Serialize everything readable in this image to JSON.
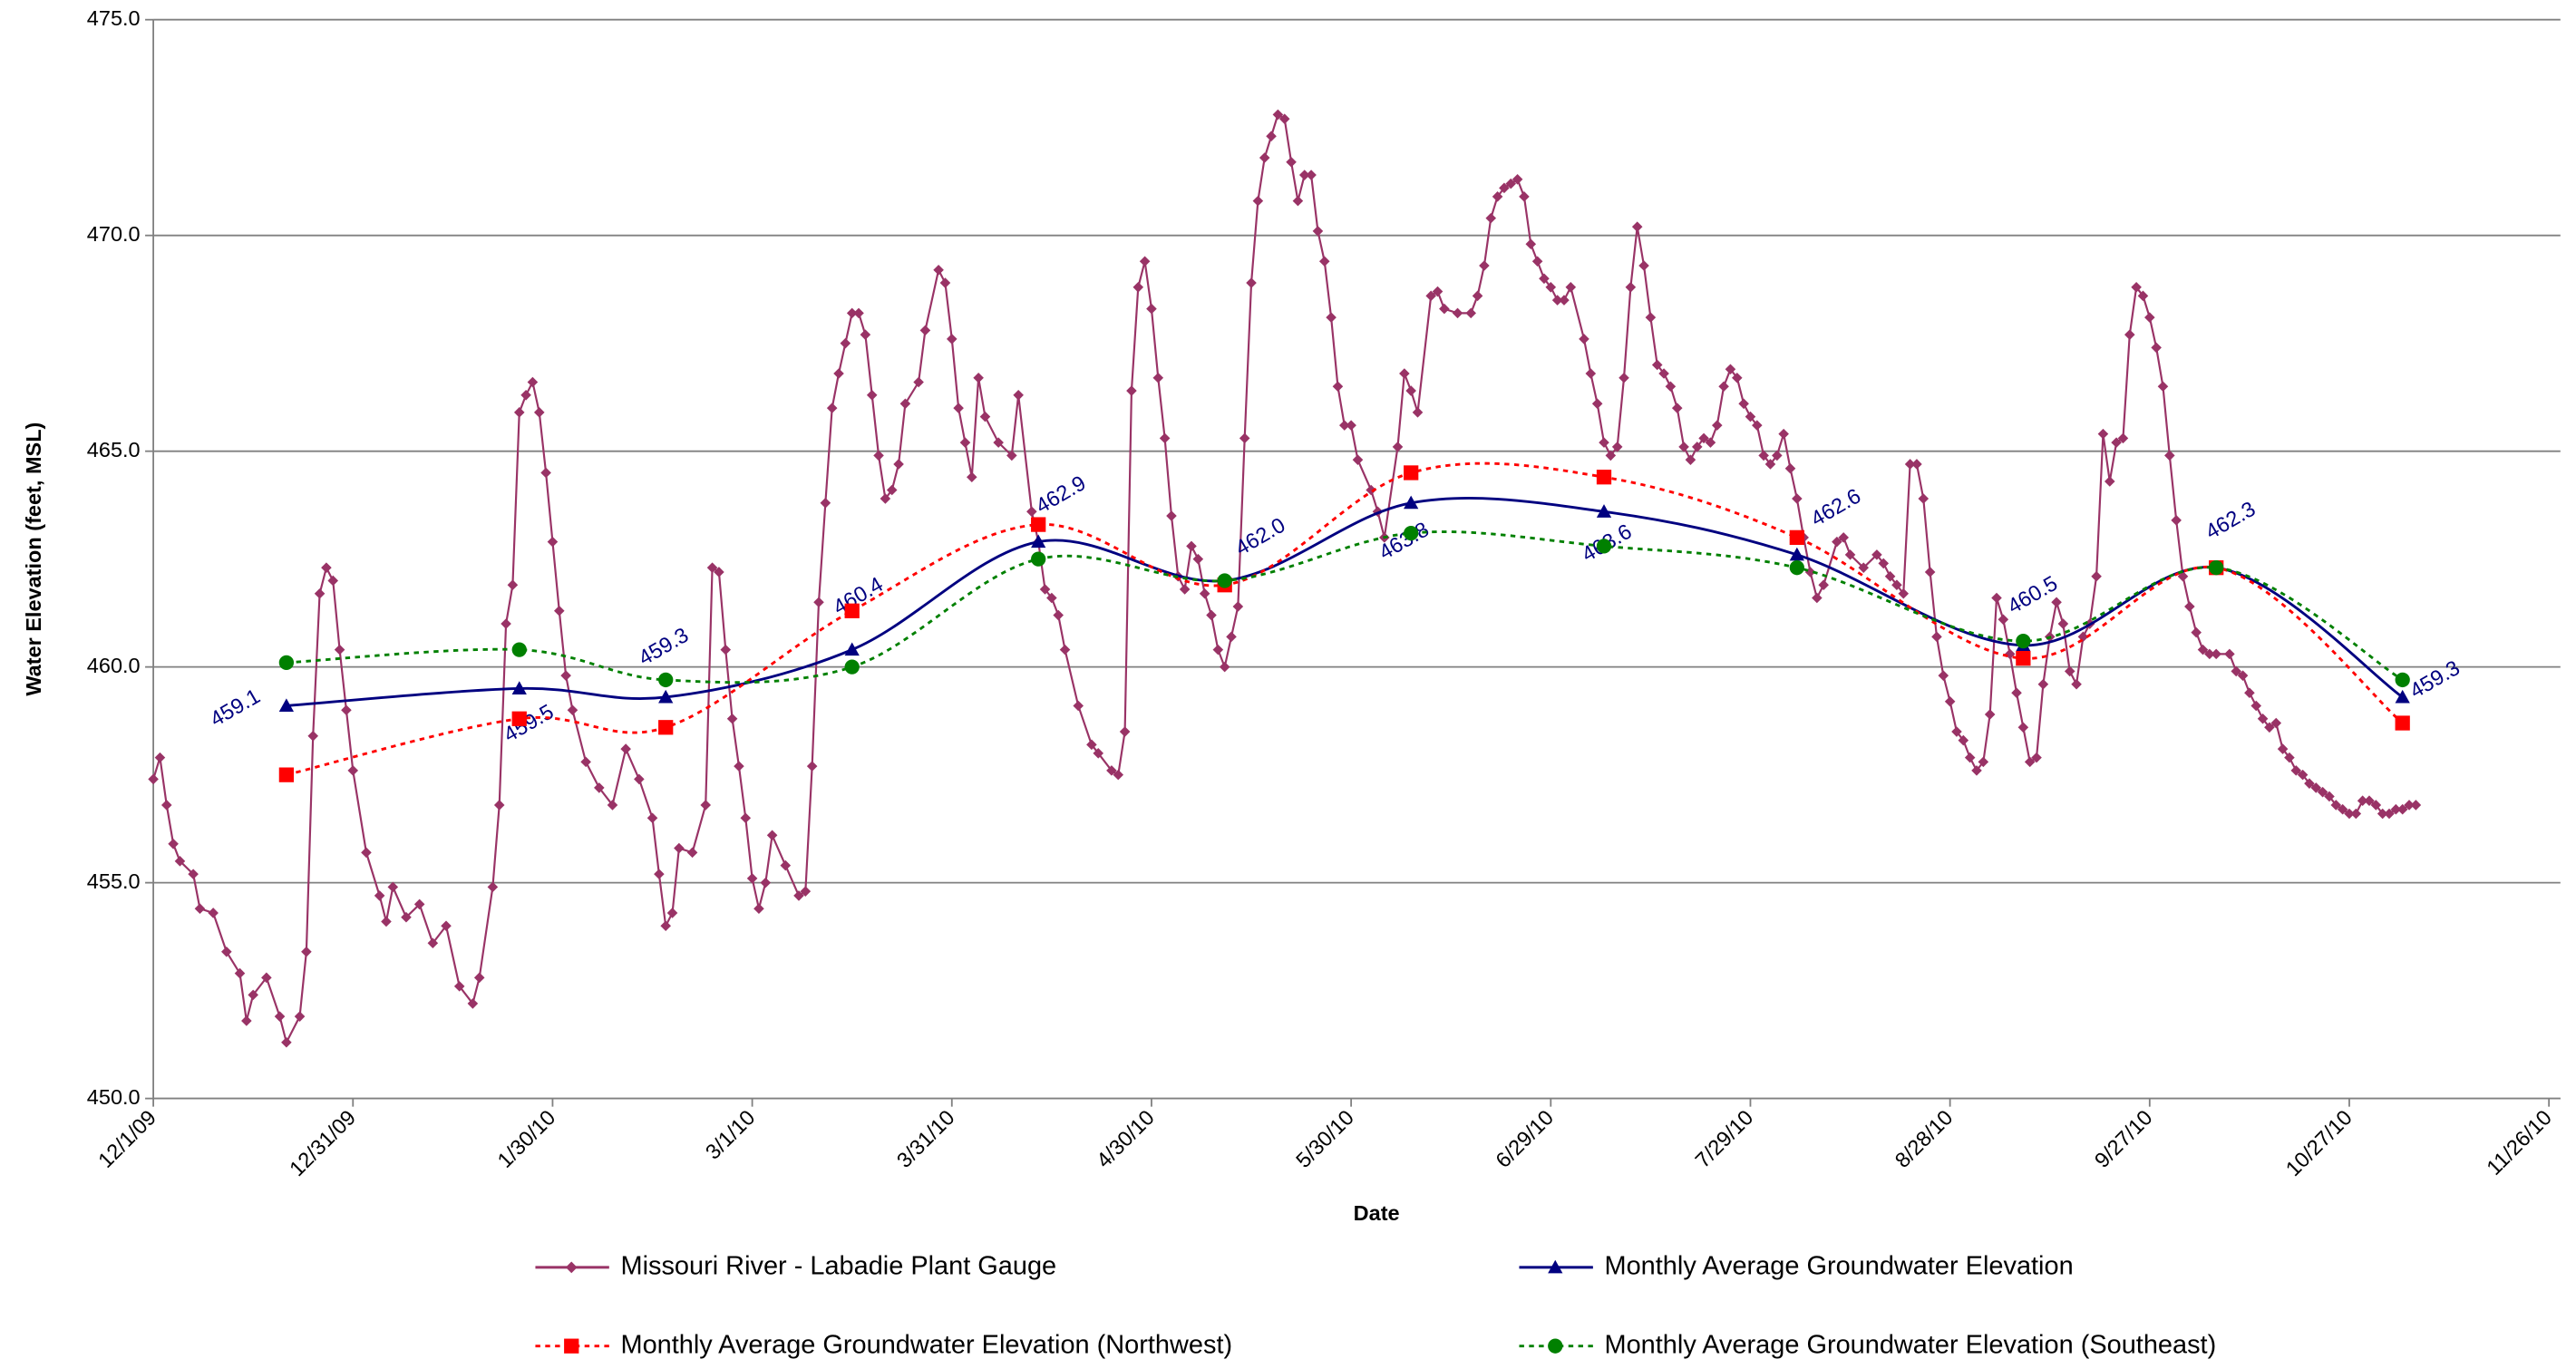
{
  "chart_data": {
    "type": "line",
    "y_label": "Water Elevation (feet, MSL)",
    "x_label": "Date",
    "xlim": [
      "12/1/09",
      "11/26/10"
    ],
    "xticks": [
      "12/1/09",
      "12/31/09",
      "1/30/10",
      "3/1/10",
      "3/31/10",
      "4/30/10",
      "5/30/10",
      "6/29/10",
      "7/29/10",
      "8/28/10",
      "9/27/10",
      "10/27/10",
      "11/26/10"
    ],
    "ylim": [
      450,
      475
    ],
    "yticks": [
      {
        "value": 450,
        "label": "450.0"
      },
      {
        "value": 455,
        "label": "455.0"
      },
      {
        "value": 460,
        "label": "460.0"
      },
      {
        "value": 465,
        "label": "465.0"
      },
      {
        "value": 470,
        "label": "470.0"
      },
      {
        "value": 475,
        "label": "475.0"
      }
    ],
    "grid": true,
    "series": [
      {
        "name": "Missouri River - Labadie Plant Gauge",
        "color": "#993366",
        "marker": "diamond",
        "line_style": "solid",
        "smooth": false,
        "x": [
          "12/1/09",
          "12/2/09",
          "12/3/09",
          "12/4/09",
          "12/5/09",
          "12/7/09",
          "12/8/09",
          "12/10/09",
          "12/12/09",
          "12/14/09",
          "12/15/09",
          "12/16/09",
          "12/18/09",
          "12/20/09",
          "12/21/09",
          "12/23/09",
          "12/24/09",
          "12/25/09",
          "12/26/09",
          "12/27/09",
          "12/28/09",
          "12/29/09",
          "12/30/09",
          "12/31/09",
          "1/2/10",
          "1/4/10",
          "1/5/10",
          "1/6/10",
          "1/8/10",
          "1/10/10",
          "1/12/10",
          "1/14/10",
          "1/16/10",
          "1/18/10",
          "1/19/10",
          "1/21/10",
          "1/22/10",
          "1/23/10",
          "1/24/10",
          "1/25/10",
          "1/26/10",
          "1/27/10",
          "1/28/10",
          "1/29/10",
          "1/30/10",
          "1/31/10",
          "2/1/10",
          "2/2/10",
          "2/4/10",
          "2/6/10",
          "2/8/10",
          "2/10/10",
          "2/12/10",
          "2/14/10",
          "2/15/10",
          "2/16/10",
          "2/17/10",
          "2/18/10",
          "2/20/10",
          "2/22/10",
          "2/23/10",
          "2/24/10",
          "2/25/10",
          "2/26/10",
          "2/27/10",
          "2/28/10",
          "3/1/10",
          "3/2/10",
          "3/3/10",
          "3/4/10",
          "3/6/10",
          "3/8/10",
          "3/9/10",
          "3/10/10",
          "3/11/10",
          "3/12/10",
          "3/13/10",
          "3/14/10",
          "3/15/10",
          "3/16/10",
          "3/17/10",
          "3/18/10",
          "3/19/10",
          "3/20/10",
          "3/21/10",
          "3/22/10",
          "3/23/10",
          "3/24/10",
          "3/26/10",
          "3/27/10",
          "3/29/10",
          "3/30/10",
          "3/31/10",
          "4/1/10",
          "4/2/10",
          "4/3/10",
          "4/4/10",
          "4/5/10",
          "4/7/10",
          "4/9/10",
          "4/10/10",
          "4/12/10",
          "4/13/10",
          "4/14/10",
          "4/15/10",
          "4/16/10",
          "4/17/10",
          "4/19/10",
          "4/21/10",
          "4/22/10",
          "4/24/10",
          "4/25/10",
          "4/26/10",
          "4/27/10",
          "4/28/10",
          "4/29/10",
          "4/30/10",
          "5/1/10",
          "5/2/10",
          "5/3/10",
          "5/4/10",
          "5/5/10",
          "5/6/10",
          "5/7/10",
          "5/8/10",
          "5/9/10",
          "5/10/10",
          "5/11/10",
          "5/12/10",
          "5/13/10",
          "5/14/10",
          "5/15/10",
          "5/16/10",
          "5/17/10",
          "5/18/10",
          "5/19/10",
          "5/20/10",
          "5/21/10",
          "5/22/10",
          "5/23/10",
          "5/24/10",
          "5/25/10",
          "5/26/10",
          "5/27/10",
          "5/28/10",
          "5/29/10",
          "5/30/10",
          "5/31/10",
          "6/2/10",
          "6/3/10",
          "6/4/10",
          "6/6/10",
          "6/7/10",
          "6/8/10",
          "6/9/10",
          "6/11/10",
          "6/12/10",
          "6/13/10",
          "6/15/10",
          "6/17/10",
          "6/18/10",
          "6/19/10",
          "6/20/10",
          "6/21/10",
          "6/22/10",
          "6/23/10",
          "6/24/10",
          "6/25/10",
          "6/26/10",
          "6/27/10",
          "6/28/10",
          "6/29/10",
          "6/30/10",
          "7/1/10",
          "7/2/10",
          "7/4/10",
          "7/5/10",
          "7/6/10",
          "7/7/10",
          "7/8/10",
          "7/9/10",
          "7/10/10",
          "7/11/10",
          "7/12/10",
          "7/13/10",
          "7/14/10",
          "7/15/10",
          "7/16/10",
          "7/17/10",
          "7/18/10",
          "7/19/10",
          "7/20/10",
          "7/21/10",
          "7/22/10",
          "7/23/10",
          "7/24/10",
          "7/25/10",
          "7/26/10",
          "7/27/10",
          "7/28/10",
          "7/29/10",
          "7/30/10",
          "7/31/10",
          "8/1/10",
          "8/2/10",
          "8/3/10",
          "8/4/10",
          "8/5/10",
          "8/6/10",
          "8/7/10",
          "8/8/10",
          "8/9/10",
          "8/11/10",
          "8/12/10",
          "8/13/10",
          "8/15/10",
          "8/17/10",
          "8/18/10",
          "8/19/10",
          "8/20/10",
          "8/21/10",
          "8/22/10",
          "8/23/10",
          "8/24/10",
          "8/25/10",
          "8/26/10",
          "8/27/10",
          "8/28/10",
          "8/29/10",
          "8/30/10",
          "8/31/10",
          "9/1/10",
          "9/2/10",
          "9/3/10",
          "9/4/10",
          "9/5/10",
          "9/6/10",
          "9/7/10",
          "9/8/10",
          "9/9/10",
          "9/10/10",
          "9/11/10",
          "9/12/10",
          "9/13/10",
          "9/14/10",
          "9/15/10",
          "9/16/10",
          "9/17/10",
          "9/18/10",
          "9/19/10",
          "9/20/10",
          "9/21/10",
          "9/22/10",
          "9/23/10",
          "9/24/10",
          "9/25/10",
          "9/26/10",
          "9/27/10",
          "9/28/10",
          "9/29/10",
          "9/30/10",
          "10/1/10",
          "10/2/10",
          "10/3/10",
          "10/4/10",
          "10/5/10",
          "10/6/10",
          "10/7/10",
          "10/9/10",
          "10/10/10",
          "10/11/10",
          "10/12/10",
          "10/13/10",
          "10/14/10",
          "10/15/10",
          "10/16/10",
          "10/17/10",
          "10/18/10",
          "10/19/10",
          "10/20/10",
          "10/21/10",
          "10/22/10",
          "10/23/10",
          "10/24/10",
          "10/25/10",
          "10/26/10",
          "10/27/10",
          "10/28/10",
          "10/29/10",
          "10/30/10",
          "10/31/10",
          "11/1/10",
          "11/2/10",
          "11/3/10",
          "11/4/10",
          "11/5/10",
          "11/6/10"
        ],
        "values": [
          457.4,
          457.9,
          456.8,
          455.9,
          455.5,
          455.2,
          454.4,
          454.3,
          453.4,
          452.9,
          451.8,
          452.4,
          452.8,
          451.9,
          451.3,
          451.9,
          453.4,
          458.4,
          461.7,
          462.3,
          462.0,
          460.4,
          459.0,
          457.6,
          455.7,
          454.7,
          454.1,
          454.9,
          454.2,
          454.5,
          453.6,
          454.0,
          452.6,
          452.2,
          452.8,
          454.9,
          456.8,
          461.0,
          461.9,
          465.9,
          466.3,
          466.6,
          465.9,
          464.5,
          462.9,
          461.3,
          459.8,
          459.0,
          457.8,
          457.2,
          456.8,
          458.1,
          457.4,
          456.5,
          455.2,
          454.0,
          454.3,
          455.8,
          455.7,
          456.8,
          462.3,
          462.2,
          460.4,
          458.8,
          457.7,
          456.5,
          455.1,
          454.4,
          455.0,
          456.1,
          455.4,
          454.7,
          454.8,
          457.7,
          461.5,
          463.8,
          466.0,
          466.8,
          467.5,
          468.2,
          468.2,
          467.7,
          466.3,
          464.9,
          463.9,
          464.1,
          464.7,
          466.1,
          466.6,
          467.8,
          469.2,
          468.9,
          467.6,
          466.0,
          465.2,
          464.4,
          466.7,
          465.8,
          465.2,
          464.9,
          466.3,
          463.6,
          462.9,
          461.8,
          461.6,
          461.2,
          460.4,
          459.1,
          458.2,
          458.0,
          457.6,
          457.5,
          458.5,
          466.4,
          468.8,
          469.4,
          468.3,
          466.7,
          465.3,
          463.5,
          462.1,
          461.8,
          462.8,
          462.5,
          461.7,
          461.2,
          460.4,
          460.0,
          460.7,
          461.4,
          465.3,
          468.9,
          470.8,
          471.8,
          472.3,
          472.8,
          472.7,
          471.7,
          470.8,
          471.4,
          471.4,
          470.1,
          469.4,
          468.1,
          466.5,
          465.6,
          465.6,
          464.8,
          464.1,
          463.6,
          463.0,
          465.1,
          466.8,
          466.4,
          465.9,
          468.6,
          468.7,
          468.3,
          468.2,
          468.2,
          468.6,
          469.3,
          470.4,
          470.9,
          471.1,
          471.2,
          471.3,
          470.9,
          469.8,
          469.4,
          469.0,
          468.8,
          468.5,
          468.5,
          468.8,
          467.6,
          466.8,
          466.1,
          465.2,
          464.9,
          465.1,
          466.7,
          468.8,
          470.2,
          469.3,
          468.1,
          467.0,
          466.8,
          466.5,
          466.0,
          465.1,
          464.8,
          465.1,
          465.3,
          465.2,
          465.6,
          466.5,
          466.9,
          466.7,
          466.1,
          465.8,
          465.6,
          464.9,
          464.7,
          464.9,
          465.4,
          464.6,
          463.9,
          463.0,
          462.2,
          461.6,
          461.9,
          462.9,
          463.0,
          462.6,
          462.3,
          462.6,
          462.4,
          462.1,
          461.9,
          461.7,
          464.7,
          464.7,
          463.9,
          462.2,
          460.7,
          459.8,
          459.2,
          458.5,
          458.3,
          457.9,
          457.6,
          457.8,
          458.9,
          461.6,
          461.1,
          460.3,
          459.4,
          458.6,
          457.8,
          457.9,
          459.6,
          460.7,
          461.5,
          461.0,
          459.9,
          459.6,
          460.7,
          461.0,
          462.1,
          465.4,
          464.3,
          465.2,
          465.3,
          467.7,
          468.8,
          468.6,
          468.1,
          467.4,
          466.5,
          464.9,
          463.4,
          462.1,
          461.4,
          460.8,
          460.4,
          460.3,
          460.3,
          460.3,
          459.9,
          459.8,
          459.4,
          459.1,
          458.8,
          458.6,
          458.7,
          458.1,
          457.9,
          457.6,
          457.5,
          457.3,
          457.2,
          457.1,
          457.0,
          456.8,
          456.7,
          456.6,
          456.6,
          456.9,
          456.9,
          456.8,
          456.6,
          456.6,
          456.7,
          456.7,
          456.8,
          456.8
        ]
      },
      {
        "name": "Monthly Average Groundwater Elevation",
        "color": "#000080",
        "marker": "triangle",
        "line_style": "solid",
        "smooth": true,
        "x": [
          "12/21/09",
          "1/25/10",
          "2/16/10",
          "3/16/10",
          "4/13/10",
          "5/11/10",
          "6/8/10",
          "7/7/10",
          "8/5/10",
          "9/8/10",
          "10/7/10",
          "11/4/10"
        ],
        "values": [
          459.1,
          459.5,
          459.3,
          460.4,
          462.9,
          462.0,
          463.8,
          463.6,
          462.6,
          460.5,
          462.3,
          459.3
        ],
        "value_labels": [
          "459.1",
          "459.5",
          "459.3",
          "460.4",
          "462.9",
          "462.0",
          "463.8",
          "463.6",
          "462.6",
          "460.5",
          "462.3",
          "459.3"
        ]
      },
      {
        "name": "Monthly Average Groundwater Elevation (Northwest)",
        "color": "#ff0000",
        "marker": "square",
        "line_style": "dotted",
        "smooth": true,
        "x": [
          "12/21/09",
          "1/25/10",
          "2/16/10",
          "3/16/10",
          "4/13/10",
          "5/11/10",
          "6/8/10",
          "7/7/10",
          "8/5/10",
          "9/8/10",
          "10/7/10",
          "11/4/10"
        ],
        "values": [
          457.5,
          458.8,
          458.6,
          461.3,
          463.3,
          461.9,
          464.5,
          464.4,
          463.0,
          460.2,
          462.3,
          458.7
        ]
      },
      {
        "name": "Monthly Average Groundwater Elevation (Southeast)",
        "color": "#008000",
        "marker": "circle",
        "line_style": "dotted",
        "smooth": true,
        "x": [
          "12/21/09",
          "1/25/10",
          "2/16/10",
          "3/16/10",
          "4/13/10",
          "5/11/10",
          "6/8/10",
          "7/7/10",
          "8/5/10",
          "9/8/10",
          "10/7/10",
          "11/4/10"
        ],
        "values": [
          460.1,
          460.4,
          459.7,
          460.0,
          462.5,
          462.0,
          463.1,
          462.8,
          462.3,
          460.6,
          462.3,
          459.7
        ]
      }
    ]
  }
}
